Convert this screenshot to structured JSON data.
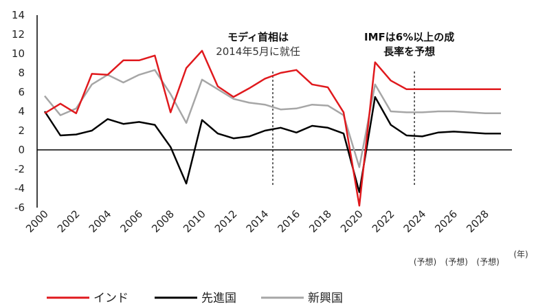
{
  "chart_data": {
    "type": "line",
    "x": [
      2000,
      2001,
      2002,
      2003,
      2004,
      2005,
      2006,
      2007,
      2008,
      2009,
      2010,
      2011,
      2012,
      2013,
      2014,
      2015,
      2016,
      2017,
      2018,
      2019,
      2020,
      2021,
      2022,
      2023,
      2024,
      2025,
      2026,
      2027,
      2028,
      2029
    ],
    "ylim": [
      -6,
      14
    ],
    "yticks": [
      14,
      12,
      10,
      8,
      6,
      4,
      2,
      0,
      -2,
      -4,
      -6
    ],
    "xticks": [
      2000,
      2002,
      2004,
      2006,
      2008,
      2010,
      2012,
      2014,
      2016,
      2018,
      2020,
      2022,
      2024,
      2026,
      2028
    ],
    "xunit": "(年)",
    "forecast_labels": [
      {
        "x": 2024,
        "text": "(予想)"
      },
      {
        "x": 2026,
        "text": "(予想)"
      },
      {
        "x": 2028,
        "text": "(予想)"
      }
    ],
    "series": [
      {
        "name": "新興国",
        "color": "#a6a6a6",
        "values": [
          5.6,
          3.6,
          4.3,
          6.8,
          7.8,
          7.0,
          7.8,
          8.3,
          5.8,
          2.8,
          7.3,
          6.3,
          5.3,
          4.9,
          4.7,
          4.2,
          4.3,
          4.7,
          4.6,
          3.6,
          -1.8,
          6.8,
          4.0,
          3.9,
          3.9,
          4.0,
          4.0,
          3.9,
          3.8,
          3.8
        ]
      },
      {
        "name": "先進国",
        "color": "#000000",
        "values": [
          4.0,
          1.5,
          1.6,
          2.0,
          3.2,
          2.7,
          2.9,
          2.6,
          0.3,
          -3.5,
          3.1,
          1.7,
          1.2,
          1.4,
          2.0,
          2.3,
          1.8,
          2.5,
          2.3,
          1.7,
          -4.4,
          5.5,
          2.6,
          1.5,
          1.4,
          1.8,
          1.9,
          1.8,
          1.7,
          1.7
        ]
      },
      {
        "name": "インド",
        "color": "#e0191d",
        "values": [
          3.8,
          4.8,
          3.8,
          7.9,
          7.8,
          9.3,
          9.3,
          9.8,
          3.9,
          8.5,
          10.3,
          6.6,
          5.5,
          6.4,
          7.4,
          8.0,
          8.3,
          6.8,
          6.5,
          3.9,
          -5.8,
          9.1,
          7.2,
          6.3,
          6.3,
          6.3,
          6.3,
          6.3,
          6.3,
          6.3
        ]
      }
    ],
    "annotations": [
      {
        "x": 2014,
        "title": "モディ首相は",
        "subtitle": "2014年5月に就任"
      },
      {
        "x": 2023,
        "title": "IMFは6%以上の成",
        "subtitle": "長率を予想"
      }
    ],
    "legend": [
      "インド",
      "先進国",
      "新興国"
    ]
  }
}
